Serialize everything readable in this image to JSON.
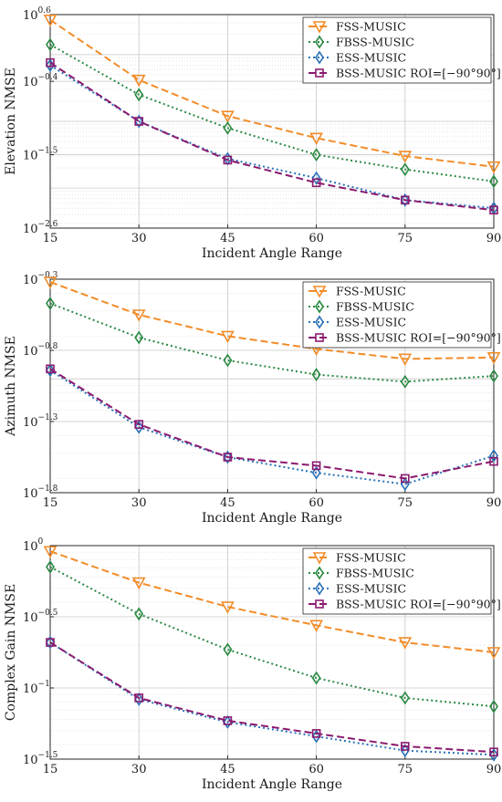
{
  "chart_data": [
    {
      "type": "line",
      "yscale": "log",
      "ylim_exponents": [
        -2.6,
        0.6
      ],
      "ytick_exponents": [
        "0.6",
        "-0.4",
        "-1.5",
        "-2.6"
      ],
      "x": [
        15,
        30,
        45,
        60,
        75,
        90
      ],
      "xticks": [
        "15",
        "30",
        "45",
        "60",
        "75",
        "90"
      ],
      "xlim": [
        15,
        90
      ],
      "xlabel": "Incident Angle Range",
      "ylabel": "Elevation NMSE",
      "grid": true,
      "legend_position": "top-right",
      "series": [
        {
          "name": "FSS-MUSIC",
          "log10_values": [
            0.52,
            -0.38,
            -0.92,
            -1.25,
            -1.52,
            -1.68
          ]
        },
        {
          "name": "FBSS-MUSIC",
          "log10_values": [
            0.15,
            -0.6,
            -1.1,
            -1.5,
            -1.72,
            -1.9
          ]
        },
        {
          "name": "ESS-MUSIC",
          "log10_values": [
            -0.16,
            -1.0,
            -1.56,
            -1.85,
            -2.18,
            -2.3
          ]
        },
        {
          "name": "BSS-MUSIC ROI=[−90°90°]",
          "log10_values": [
            -0.12,
            -1.0,
            -1.58,
            -1.92,
            -2.18,
            -2.33
          ]
        }
      ]
    },
    {
      "type": "line",
      "yscale": "log",
      "ylim_exponents": [
        -1.8,
        -0.3
      ],
      "ytick_exponents": [
        "-0.3",
        "-0.8",
        "-1.3",
        "-1.8"
      ],
      "x": [
        15,
        30,
        45,
        60,
        75,
        90
      ],
      "xticks": [
        "15",
        "30",
        "45",
        "60",
        "75",
        "90"
      ],
      "xlim": [
        15,
        90
      ],
      "xlabel": "Incident Angle Range",
      "ylabel": "Azimuth NMSE",
      "grid": true,
      "legend_position": "top-right",
      "series": [
        {
          "name": "FSS-MUSIC",
          "log10_values": [
            -0.32,
            -0.55,
            -0.7,
            -0.79,
            -0.86,
            -0.85
          ]
        },
        {
          "name": "FBSS-MUSIC",
          "log10_values": [
            -0.47,
            -0.71,
            -0.87,
            -0.97,
            -1.02,
            -0.98
          ]
        },
        {
          "name": "ESS-MUSIC",
          "log10_values": [
            -0.94,
            -1.34,
            -1.55,
            -1.66,
            -1.74,
            -1.54
          ]
        },
        {
          "name": "BSS-MUSIC ROI=[−90°90°]",
          "log10_values": [
            -0.93,
            -1.32,
            -1.55,
            -1.61,
            -1.7,
            -1.58
          ]
        }
      ]
    },
    {
      "type": "line",
      "yscale": "log",
      "ylim_exponents": [
        -1.5,
        0
      ],
      "ytick_exponents": [
        "0",
        "-0.5",
        "-1",
        "-1.5"
      ],
      "x": [
        15,
        30,
        45,
        60,
        75,
        90
      ],
      "xticks": [
        "15",
        "30",
        "45",
        "60",
        "75",
        "90"
      ],
      "xlim": [
        15,
        90
      ],
      "xlabel": "Incident Angle Range",
      "ylabel": "Complex Gain NMSE",
      "grid": true,
      "legend_position": "top-right",
      "series": [
        {
          "name": "FSS-MUSIC",
          "log10_values": [
            -0.04,
            -0.26,
            -0.43,
            -0.56,
            -0.68,
            -0.75
          ]
        },
        {
          "name": "FBSS-MUSIC",
          "log10_values": [
            -0.15,
            -0.48,
            -0.73,
            -0.93,
            -1.07,
            -1.13
          ]
        },
        {
          "name": "ESS-MUSIC",
          "log10_values": [
            -0.68,
            -1.08,
            -1.24,
            -1.34,
            -1.44,
            -1.47
          ]
        },
        {
          "name": "BSS-MUSIC ROI=[−90°90°]",
          "log10_values": [
            -0.68,
            -1.07,
            -1.23,
            -1.32,
            -1.41,
            -1.45
          ]
        }
      ]
    }
  ],
  "styles": {
    "FSS-MUSIC": {
      "color": "#f28c28",
      "dash": "dashed",
      "marker": "triangle-down"
    },
    "FBSS-MUSIC": {
      "color": "#2a8a43",
      "dash": "dotted",
      "marker": "diamond"
    },
    "ESS-MUSIC": {
      "color": "#2a72b8",
      "dash": "dotted",
      "marker": "diamond"
    },
    "BSS-MUSIC ROI=[−90°90°]": {
      "color": "#8b1a6f",
      "dash": "dashed",
      "marker": "square"
    }
  }
}
